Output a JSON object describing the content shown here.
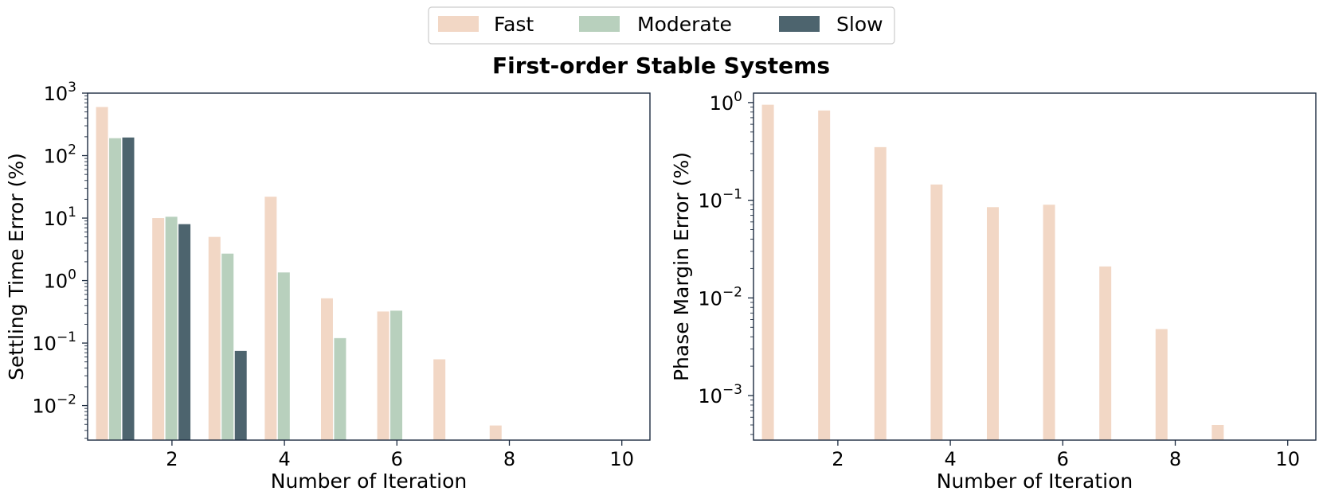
{
  "suptitle": "First-order Stable Systems",
  "legend": {
    "placement": "top-center",
    "items": [
      {
        "label": "Fast",
        "color": "#f2d7c5"
      },
      {
        "label": "Moderate",
        "color": "#b8d0bd"
      },
      {
        "label": "Slow",
        "color": "#4d646e"
      }
    ]
  },
  "chart_data": [
    {
      "type": "bar",
      "xlabel": "Number of Iteration",
      "ylabel": "Settling Time Error (%)",
      "yscale": "log",
      "ylim": [
        0.0028,
        1000
      ],
      "xlim": [
        0.5,
        10.5
      ],
      "xticks": [
        2,
        4,
        6,
        8,
        10
      ],
      "yticks": [
        {
          "value": 0.01,
          "base": "10",
          "exp": "−2"
        },
        {
          "value": 0.1,
          "base": "10",
          "exp": "−1"
        },
        {
          "value": 1,
          "base": "10",
          "exp": "0"
        },
        {
          "value": 10,
          "base": "10",
          "exp": "1"
        },
        {
          "value": 100,
          "base": "10",
          "exp": "2"
        },
        {
          "value": 1000,
          "base": "10",
          "exp": "3"
        }
      ],
      "grid": false,
      "x": [
        1,
        2,
        3,
        4,
        5,
        6,
        7,
        8,
        9,
        10
      ],
      "series": [
        {
          "name": "Fast",
          "color": "#f2d7c5",
          "values": [
            600,
            10,
            5,
            22,
            0.52,
            0.32,
            0.055,
            0.0048,
            null,
            null
          ]
        },
        {
          "name": "Moderate",
          "color": "#b8d0bd",
          "values": [
            190,
            10.5,
            2.7,
            1.35,
            0.12,
            0.33,
            null,
            null,
            null,
            null
          ]
        },
        {
          "name": "Slow",
          "color": "#4d646e",
          "values": [
            195,
            8,
            0.075,
            null,
            null,
            null,
            null,
            null,
            null,
            null
          ]
        }
      ]
    },
    {
      "type": "bar",
      "xlabel": "Number of Iteration",
      "ylabel": "Phase Margin Error (%)",
      "yscale": "log",
      "ylim": [
        0.00035,
        1.25
      ],
      "xlim": [
        0.5,
        10.5
      ],
      "xticks": [
        2,
        4,
        6,
        8,
        10
      ],
      "yticks": [
        {
          "value": 0.001,
          "base": "10",
          "exp": "−3"
        },
        {
          "value": 0.01,
          "base": "10",
          "exp": "−2"
        },
        {
          "value": 0.1,
          "base": "10",
          "exp": "−1"
        },
        {
          "value": 1,
          "base": "10",
          "exp": "0"
        }
      ],
      "grid": false,
      "x": [
        1,
        2,
        3,
        4,
        5,
        6,
        7,
        8,
        9,
        10
      ],
      "series": [
        {
          "name": "Fast",
          "color": "#f2d7c5",
          "values": [
            0.95,
            0.83,
            0.35,
            0.145,
            0.085,
            0.09,
            0.021,
            0.0048,
            0.0005,
            null
          ]
        },
        {
          "name": "Moderate",
          "color": "#b8d0bd",
          "values": [
            null,
            null,
            null,
            null,
            null,
            null,
            null,
            null,
            null,
            null
          ]
        },
        {
          "name": "Slow",
          "color": "#4d646e",
          "values": [
            null,
            null,
            null,
            null,
            null,
            null,
            null,
            null,
            null,
            null
          ]
        }
      ]
    }
  ]
}
